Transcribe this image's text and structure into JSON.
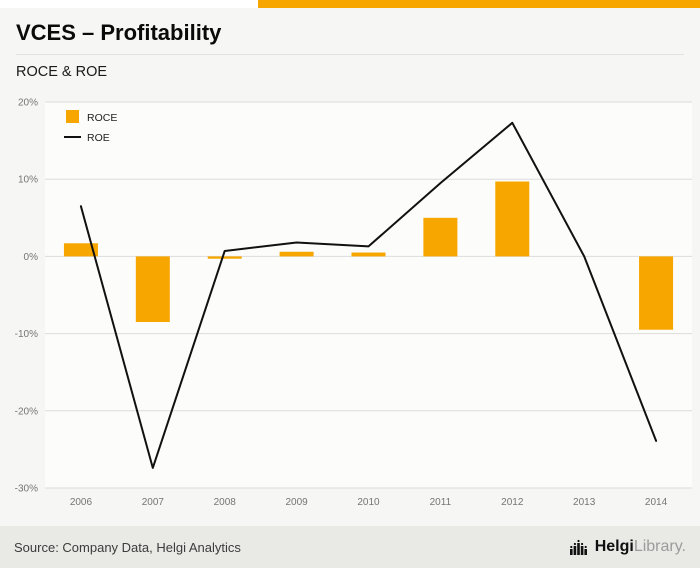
{
  "header": {
    "title": "VCES – Profitability",
    "subtitle": "ROCE & ROE"
  },
  "footer": {
    "source": "Source: Company Data, Helgi Analytics",
    "logo_bold": "Helgi",
    "logo_light": "Library."
  },
  "colors": {
    "accent": "#f7a600",
    "line": "#111111",
    "grid": "#dcdcdc",
    "plot_bg": "#fcfcfa",
    "page_bg": "#f6f6f4",
    "footer_bg": "#e9e9e6",
    "tick_text": "#757575"
  },
  "chart_data": {
    "type": "bar",
    "subtype": "combo-bar-line",
    "title": "ROCE & ROE",
    "categories": [
      "2006",
      "2007",
      "2008",
      "2009",
      "2010",
      "2011",
      "2012",
      "2013",
      "2014"
    ],
    "series": [
      {
        "name": "ROCE",
        "type": "bar",
        "color": "#f7a600",
        "values": [
          1.7,
          -8.5,
          -0.3,
          0.6,
          0.5,
          5.0,
          9.7,
          0,
          -9.5
        ]
      },
      {
        "name": "ROE",
        "type": "line",
        "color": "#111111",
        "values": [
          6.5,
          -27.4,
          0.7,
          1.8,
          1.3,
          9.5,
          17.3,
          0,
          -23.9
        ]
      }
    ],
    "ylim": [
      -30,
      20
    ],
    "yticks": [
      {
        "value": 20,
        "label": "20%"
      },
      {
        "value": 10,
        "label": "10%"
      },
      {
        "value": 0,
        "label": "0%"
      },
      {
        "value": -10,
        "label": "-10%"
      },
      {
        "value": -20,
        "label": "-20%"
      },
      {
        "value": -30,
        "label": "-30%"
      }
    ],
    "grid": true,
    "legend_position": "top-left"
  }
}
